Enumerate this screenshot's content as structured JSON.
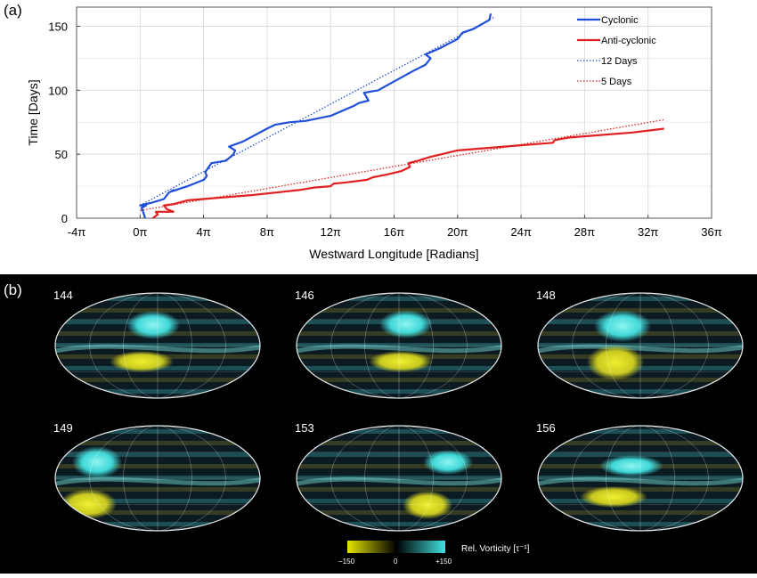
{
  "panel_a": {
    "label": "(a)"
  },
  "panel_b": {
    "label": "(b)",
    "maps": [
      {
        "day": "144"
      },
      {
        "day": "146"
      },
      {
        "day": "148"
      },
      {
        "day": "149"
      },
      {
        "day": "153"
      },
      {
        "day": "156"
      }
    ],
    "colorbar": {
      "title": "Rel. Vorticity [τ⁻¹]",
      "tick_labels": [
        "−150",
        "0",
        "+150"
      ],
      "colors": [
        "#e6e600",
        "#000000",
        "#40e0e0"
      ]
    }
  },
  "chart_data": {
    "type": "line",
    "xlabel": "Westward Longitude [Radians]",
    "ylabel": "Time [Days]",
    "xlim": [
      -12.566,
      113.097
    ],
    "ylim": [
      0,
      165
    ],
    "x_tick_labels": [
      "-4π",
      "0π",
      "4π",
      "8π",
      "12π",
      "16π",
      "20π",
      "24π",
      "28π",
      "32π",
      "36π"
    ],
    "x_tick_values": [
      -12.566,
      0,
      12.566,
      25.133,
      37.699,
      50.265,
      62.832,
      75.398,
      87.965,
      100.531,
      113.097
    ],
    "y_tick_labels": [
      "0",
      "50",
      "100",
      "150"
    ],
    "y_tick_values": [
      0,
      50,
      100,
      150
    ],
    "grid": true,
    "legend": "top-right",
    "series": [
      {
        "name": "Cyclonic",
        "color": "#1f4fd8",
        "style": "solid",
        "x": [
          1.0,
          0.6,
          0.3,
          1.2,
          0.0,
          2.2,
          4.7,
          5.7,
          6.6,
          6.3,
          9.4,
          12.6,
          13.2,
          12.9,
          14.1,
          17.0,
          18.5,
          18.8,
          17.6,
          20.4,
          25.1,
          26.7,
          29.5,
          32.7,
          37.7,
          42.4,
          43.3,
          45.2,
          44.3,
          47.1,
          50.3,
          54.0,
          56.5,
          57.5,
          56.5,
          59.4,
          62.8,
          63.8,
          66.0,
          69.1,
          69.4
        ],
        "y": [
          0,
          5,
          8,
          10,
          10,
          12,
          15,
          20,
          22,
          21,
          25,
          30,
          33,
          36,
          43,
          45,
          50,
          53,
          56,
          60,
          70,
          73,
          75,
          76,
          80,
          88,
          90,
          92,
          98,
          100,
          107,
          115,
          120,
          125,
          128,
          133,
          140,
          145,
          148,
          155,
          160
        ]
      },
      {
        "name": "Anti-cyclonic",
        "color": "#e02020",
        "style": "solid",
        "x": [
          2.5,
          3.5,
          3.1,
          6.6,
          5.3,
          4.7,
          6.6,
          9.4,
          15.7,
          22.0,
          26.7,
          31.4,
          34.6,
          37.7,
          38.3,
          40.8,
          44.9,
          46.1,
          48.7,
          51.8,
          53.4,
          53.1,
          55.0,
          57.5,
          59.7,
          62.8,
          69.1,
          75.4,
          81.7,
          82.0,
          84.8,
          91.1,
          97.4,
          103.7
        ],
        "y": [
          0,
          3,
          5,
          5,
          7,
          10,
          11,
          14,
          16,
          18,
          20,
          22,
          24,
          25,
          27,
          28,
          30,
          32,
          34,
          37,
          40,
          43,
          45,
          48,
          50,
          53,
          55,
          57,
          59,
          61,
          63,
          65,
          67,
          70
        ]
      },
      {
        "name": "12 Days",
        "color": "#1f4fd8",
        "style": "dotted",
        "x": [
          0.0,
          70.0
        ],
        "y": [
          10,
          157
        ]
      },
      {
        "name": "5 Days",
        "color": "#e02020",
        "style": "dotted",
        "x": [
          0.0,
          103.7
        ],
        "y": [
          6,
          77
        ]
      }
    ]
  }
}
